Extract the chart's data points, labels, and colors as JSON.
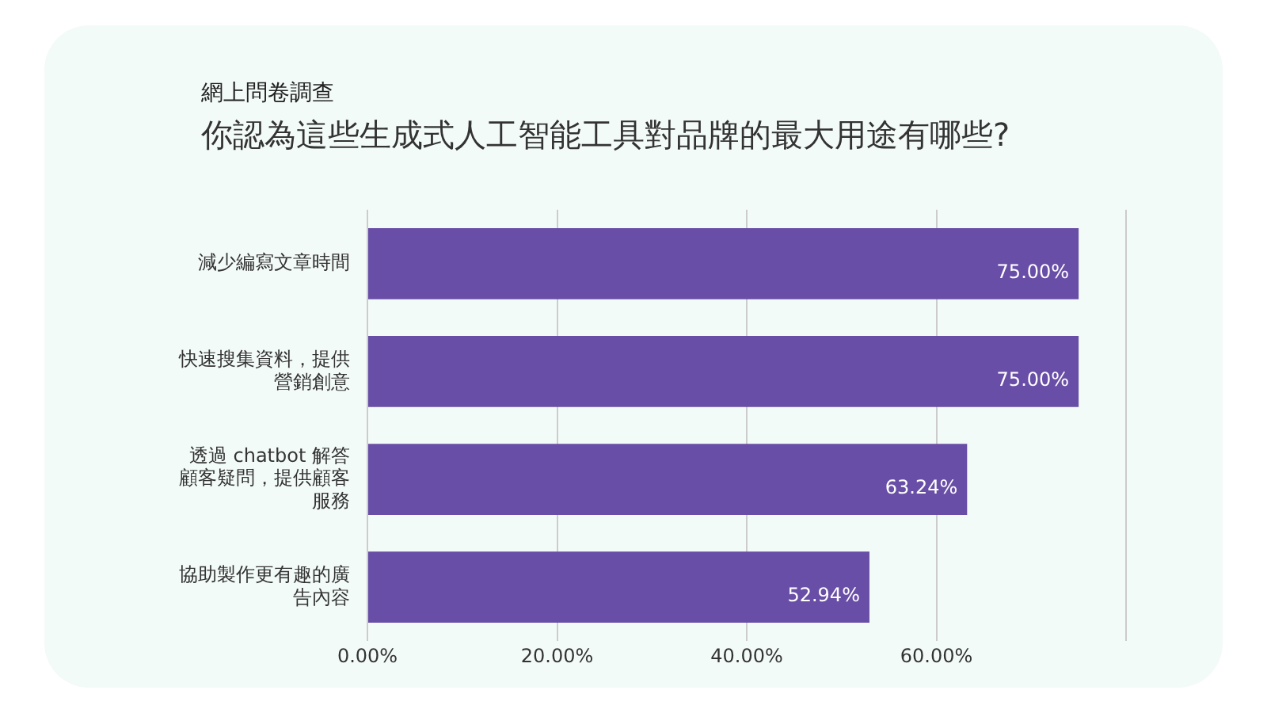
{
  "chart_data": {
    "type": "bar",
    "orientation": "horizontal",
    "subtitle": "網上問卷調查",
    "title": "你認為這些生成式人工智能工具對品牌的最大用途有哪些?",
    "categories": [
      "減少編寫文章時間",
      "快速搜集資料，提供營銷創意",
      "透過 chatbot 解答顧客疑問，提供顧客服務",
      "協助製作更有趣的廣告內容"
    ],
    "values": [
      75,
      75,
      63.24,
      52.94
    ],
    "color": "#684ea6",
    "value_labels": [
      "75.00%",
      "75.00%",
      "63.24%",
      "52.94%"
    ],
    "xlim": [
      0,
      80
    ],
    "xticks": [
      {
        "value": 0,
        "label": "0.00%"
      },
      {
        "value": 20,
        "label": "20.00%"
      },
      {
        "value": 40,
        "label": "40.00%"
      },
      {
        "value": 60,
        "label": "60.00%"
      },
      {
        "value": 80,
        "label": null
      }
    ],
    "grid": "x",
    "legend": false
  }
}
